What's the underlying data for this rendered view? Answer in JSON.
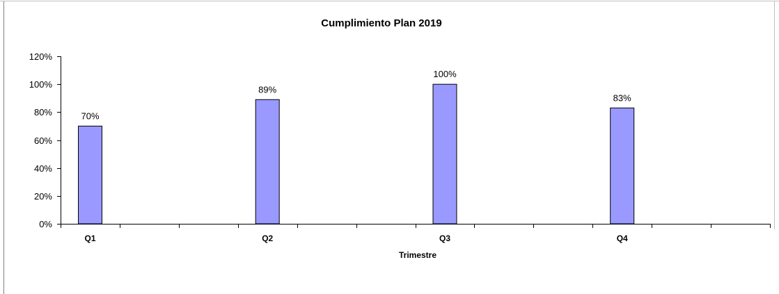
{
  "chart_data": {
    "type": "bar",
    "title": "Cumplimiento Plan 2019",
    "xlabel": "Trimestre",
    "ylabel": "",
    "categories": [
      "Q1",
      "Q2",
      "Q3",
      "Q4"
    ],
    "values": [
      70,
      89,
      100,
      83
    ],
    "data_labels": [
      "70%",
      "89%",
      "100%",
      "83%"
    ],
    "ylim": [
      0,
      120
    ],
    "yticks": [
      "0%",
      "20%",
      "40%",
      "60%",
      "80%",
      "100%",
      "120%"
    ],
    "grid": false,
    "legend": "none",
    "colors": {
      "bar_fill": "#9999ff",
      "bar_stroke": "#000000",
      "axis": "#000000",
      "frame": "#808080"
    }
  }
}
